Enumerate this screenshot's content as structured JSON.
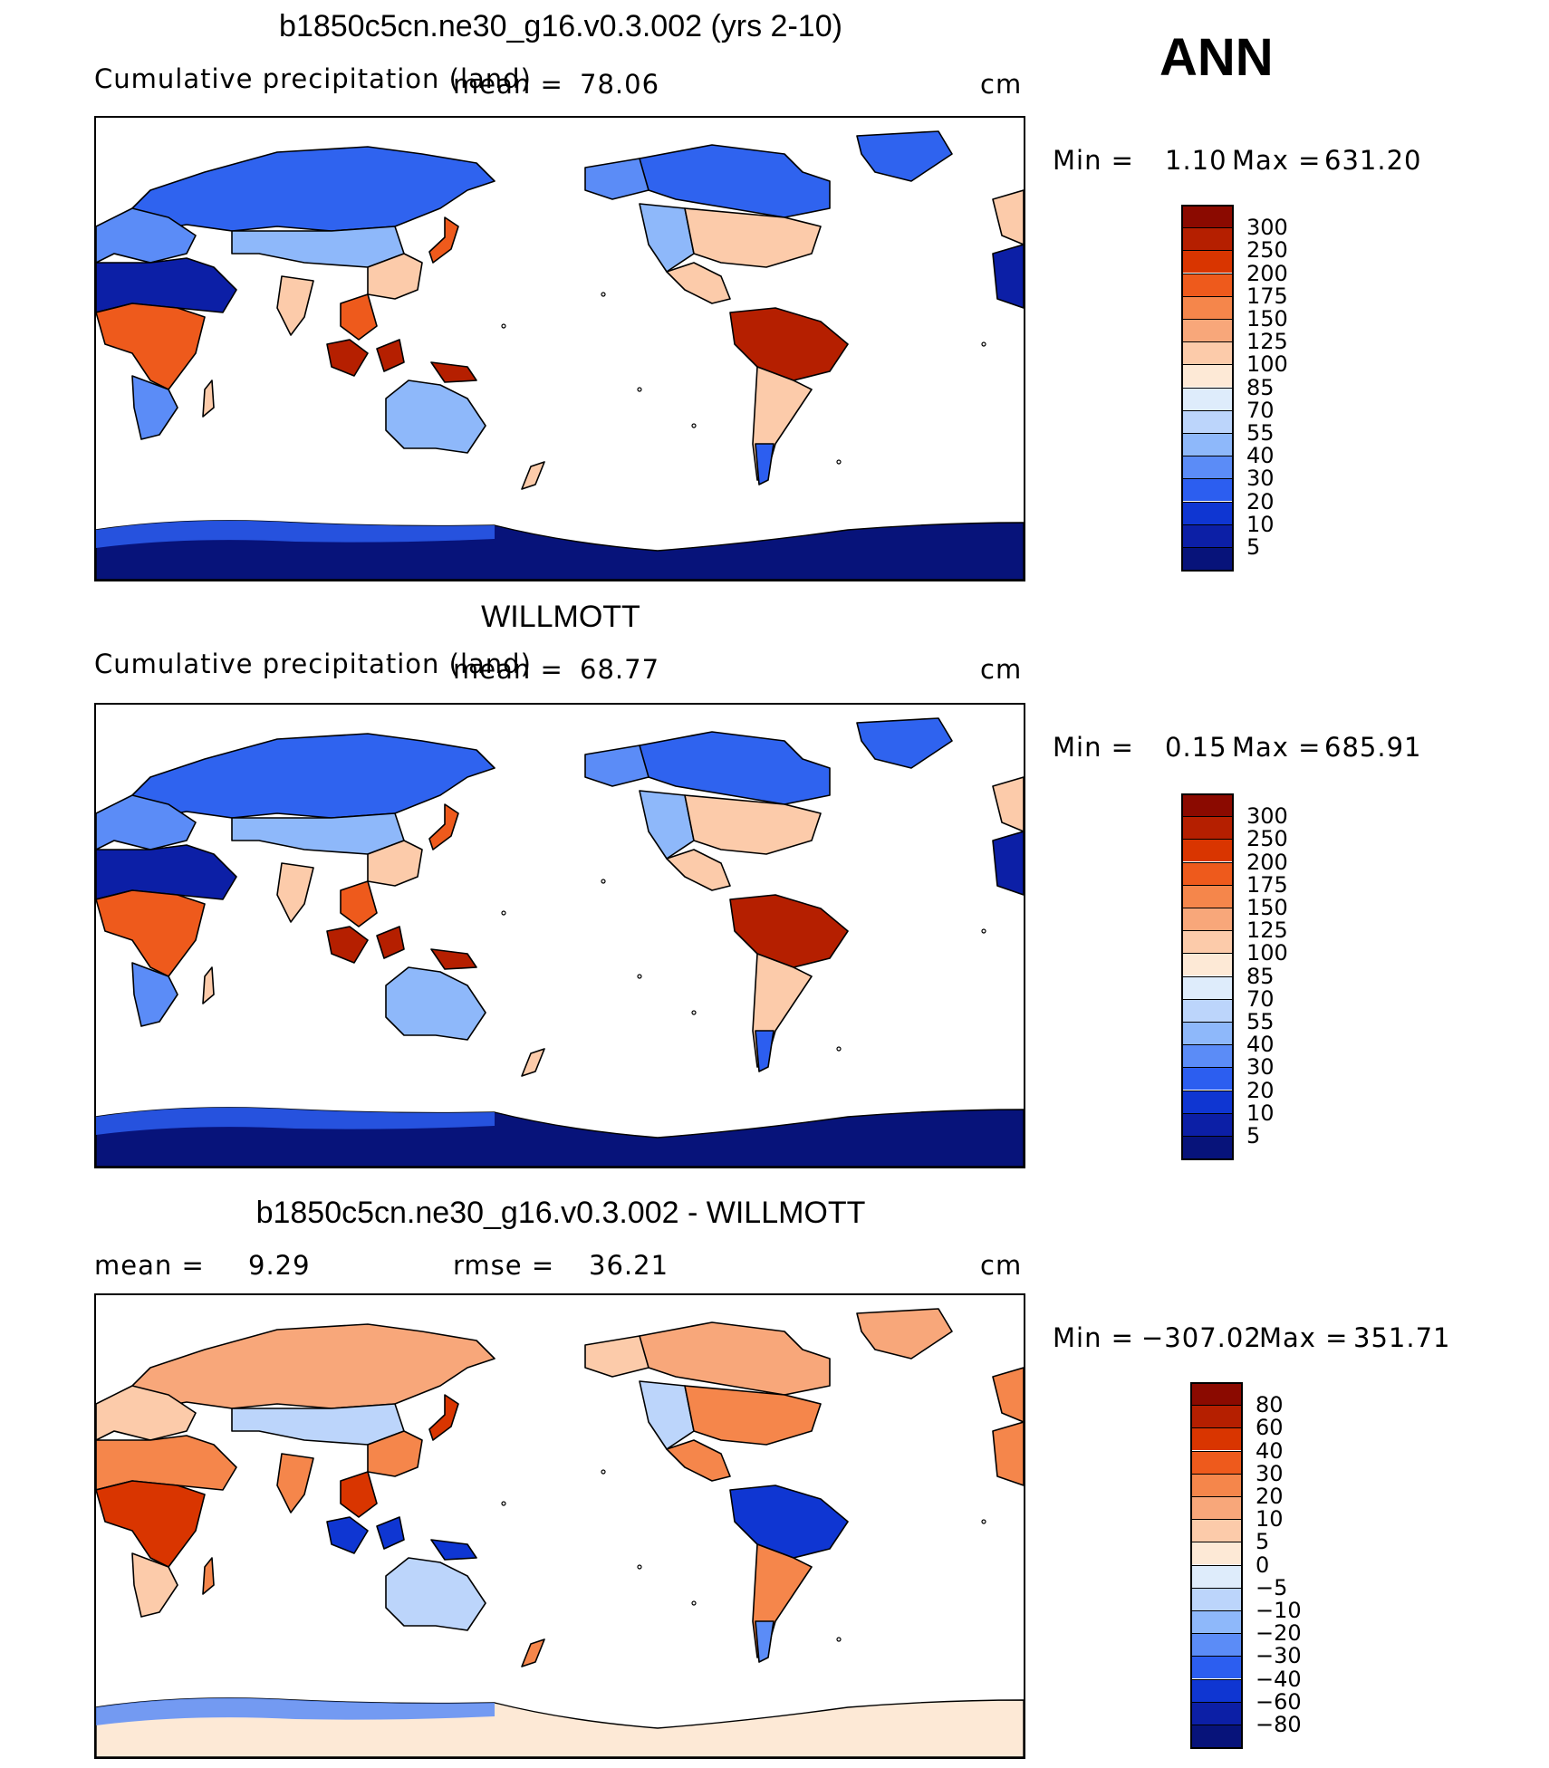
{
  "season": "ANN",
  "panels": [
    {
      "title": "b1850c5cn.ne30_g16.v0.3.002 (yrs 2-10)",
      "subtitle": "Cumulative precipitation (land)",
      "stat1_label": "mean =",
      "stat1_value": "78.06",
      "stat2_label": "",
      "stat2_value": "",
      "units": "cm",
      "min_label": "Min =",
      "min_value": "1.10",
      "max_label": "Max =",
      "max_value": "631.20",
      "field": "precip",
      "colorbar": {
        "labels": [
          "300",
          "250",
          "200",
          "175",
          "150",
          "125",
          "100",
          "85",
          "70",
          "55",
          "40",
          "30",
          "20",
          "10",
          "5"
        ],
        "colors": [
          "#8b0a00",
          "#b51f00",
          "#d93500",
          "#ee5a1c",
          "#f5864b",
          "#f8a77a",
          "#fccbaa",
          "#fde9d6",
          "#deecfb",
          "#bcd5fb",
          "#8eb8fa",
          "#5b8cf7",
          "#2c5ef0",
          "#0f36d2",
          "#0c1fa6",
          "#07137a"
        ]
      }
    },
    {
      "title": "WILLMOTT",
      "subtitle": "Cumulative precipitation (land)",
      "stat1_label": "mean =",
      "stat1_value": "68.77",
      "stat2_label": "",
      "stat2_value": "",
      "units": "cm",
      "min_label": "Min =",
      "min_value": "0.15",
      "max_label": "Max =",
      "max_value": "685.91",
      "field": "precip",
      "colorbar": {
        "labels": [
          "300",
          "250",
          "200",
          "175",
          "150",
          "125",
          "100",
          "85",
          "70",
          "55",
          "40",
          "30",
          "20",
          "10",
          "5"
        ],
        "colors": [
          "#8b0a00",
          "#b51f00",
          "#d93500",
          "#ee5a1c",
          "#f5864b",
          "#f8a77a",
          "#fccbaa",
          "#fde9d6",
          "#deecfb",
          "#bcd5fb",
          "#8eb8fa",
          "#5b8cf7",
          "#2c5ef0",
          "#0f36d2",
          "#0c1fa6",
          "#07137a"
        ]
      }
    },
    {
      "title": "b1850c5cn.ne30_g16.v0.3.002 - WILLMOTT",
      "subtitle": "",
      "stat1_label": "mean =",
      "stat1_value": "9.29",
      "stat2_label": "rmse =",
      "stat2_value": "36.21",
      "units": "cm",
      "min_label": "Min =",
      "min_value": "−307.02",
      "max_label": "Max =",
      "max_value": "351.71",
      "field": "diff",
      "colorbar": {
        "labels": [
          "80",
          "60",
          "40",
          "30",
          "20",
          "10",
          "5",
          "0",
          "−5",
          "−10",
          "−20",
          "−30",
          "−40",
          "−60",
          "−80"
        ],
        "colors": [
          "#8b0a00",
          "#b51f00",
          "#d93500",
          "#ee5a1c",
          "#f5864b",
          "#f8a77a",
          "#fccbaa",
          "#fde9d6",
          "#deecfb",
          "#bcd5fb",
          "#8eb8fa",
          "#5b8cf7",
          "#2c5ef0",
          "#0f36d2",
          "#0c1fa6",
          "#07137a"
        ]
      }
    }
  ],
  "map_colors": {
    "precip": {
      "northern": "#2f63ef",
      "boreal": "#5b8cf7",
      "desert": "#0c1fa6",
      "dry": "#8eb8fa",
      "temperate": "#fccbaa",
      "wet": "#ee5a1c",
      "tropical": "#b51f00",
      "ice": "#07137a",
      "ice_edge": "#2c5ef0"
    },
    "diff": {
      "northern": "#f8a77a",
      "boreal": "#fccbaa",
      "desert": "#f5864b",
      "dry": "#bcd5fb",
      "temperate": "#f5864b",
      "wet": "#d93500",
      "tropical": "#0f36d2",
      "ice": "#fde9d6",
      "ice_edge": "#5b8cf7"
    }
  }
}
